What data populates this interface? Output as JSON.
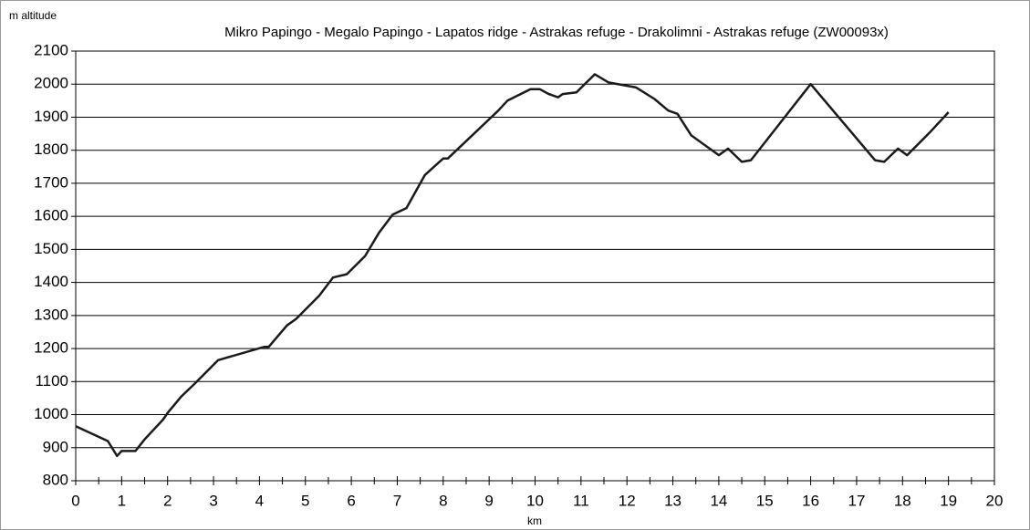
{
  "chart_data": {
    "type": "line",
    "title": "Mikro Papingo - Megalo Papingo - Lapatos ridge - Astrakas refuge - Drakolimni - Astrakas refuge (ZW00093x)",
    "y_label": "m altitude",
    "x_label": "km",
    "x": [
      0,
      0.7,
      0.9,
      1.0,
      1.3,
      1.5,
      1.7,
      1.9,
      2.0,
      2.3,
      2.6,
      3.1,
      4.1,
      4.2,
      4.6,
      4.8,
      5.3,
      5.6,
      5.9,
      6.3,
      6.6,
      6.9,
      7.2,
      7.6,
      7.8,
      8.0,
      8.1,
      9.2,
      9.4,
      9.9,
      10.1,
      10.3,
      10.5,
      10.6,
      10.9,
      11.3,
      11.6,
      12.2,
      12.6,
      12.9,
      13.1,
      13.4,
      14.0,
      14.2,
      14.5,
      14.7,
      16.0,
      17.4,
      17.6,
      17.9,
      18.1,
      18.6,
      19.0
    ],
    "y": [
      965,
      920,
      875,
      890,
      890,
      925,
      955,
      985,
      1005,
      1055,
      1095,
      1165,
      1205,
      1205,
      1270,
      1290,
      1360,
      1415,
      1425,
      1480,
      1550,
      1605,
      1625,
      1725,
      1750,
      1775,
      1775,
      1920,
      1950,
      1985,
      1985,
      1970,
      1960,
      1970,
      1975,
      2030,
      2005,
      1990,
      1955,
      1920,
      1910,
      1845,
      1785,
      1805,
      1765,
      1770,
      2000,
      1770,
      1765,
      1805,
      1785,
      1855,
      1915
    ],
    "color": "#1a1a1a",
    "xlim": [
      0,
      20
    ],
    "xticks": [
      0,
      1,
      2,
      3,
      4,
      5,
      6,
      7,
      8,
      9,
      10,
      11,
      12,
      13,
      14,
      15,
      16,
      17,
      18,
      19,
      20
    ],
    "xminorticks": [
      0.5,
      1.5,
      2.5,
      3.5,
      4.5,
      5.5,
      6.5,
      7.5,
      8.5,
      9.5,
      10.5,
      11.5,
      12.5,
      13.5,
      14.5,
      15.5,
      16.5,
      17.5,
      18.5,
      19.5
    ],
    "ylim": [
      800,
      2100
    ],
    "yticks": [
      800,
      900,
      1000,
      1100,
      1200,
      1300,
      1400,
      1500,
      1600,
      1700,
      1800,
      1900,
      2000,
      2100
    ],
    "grid": true
  }
}
